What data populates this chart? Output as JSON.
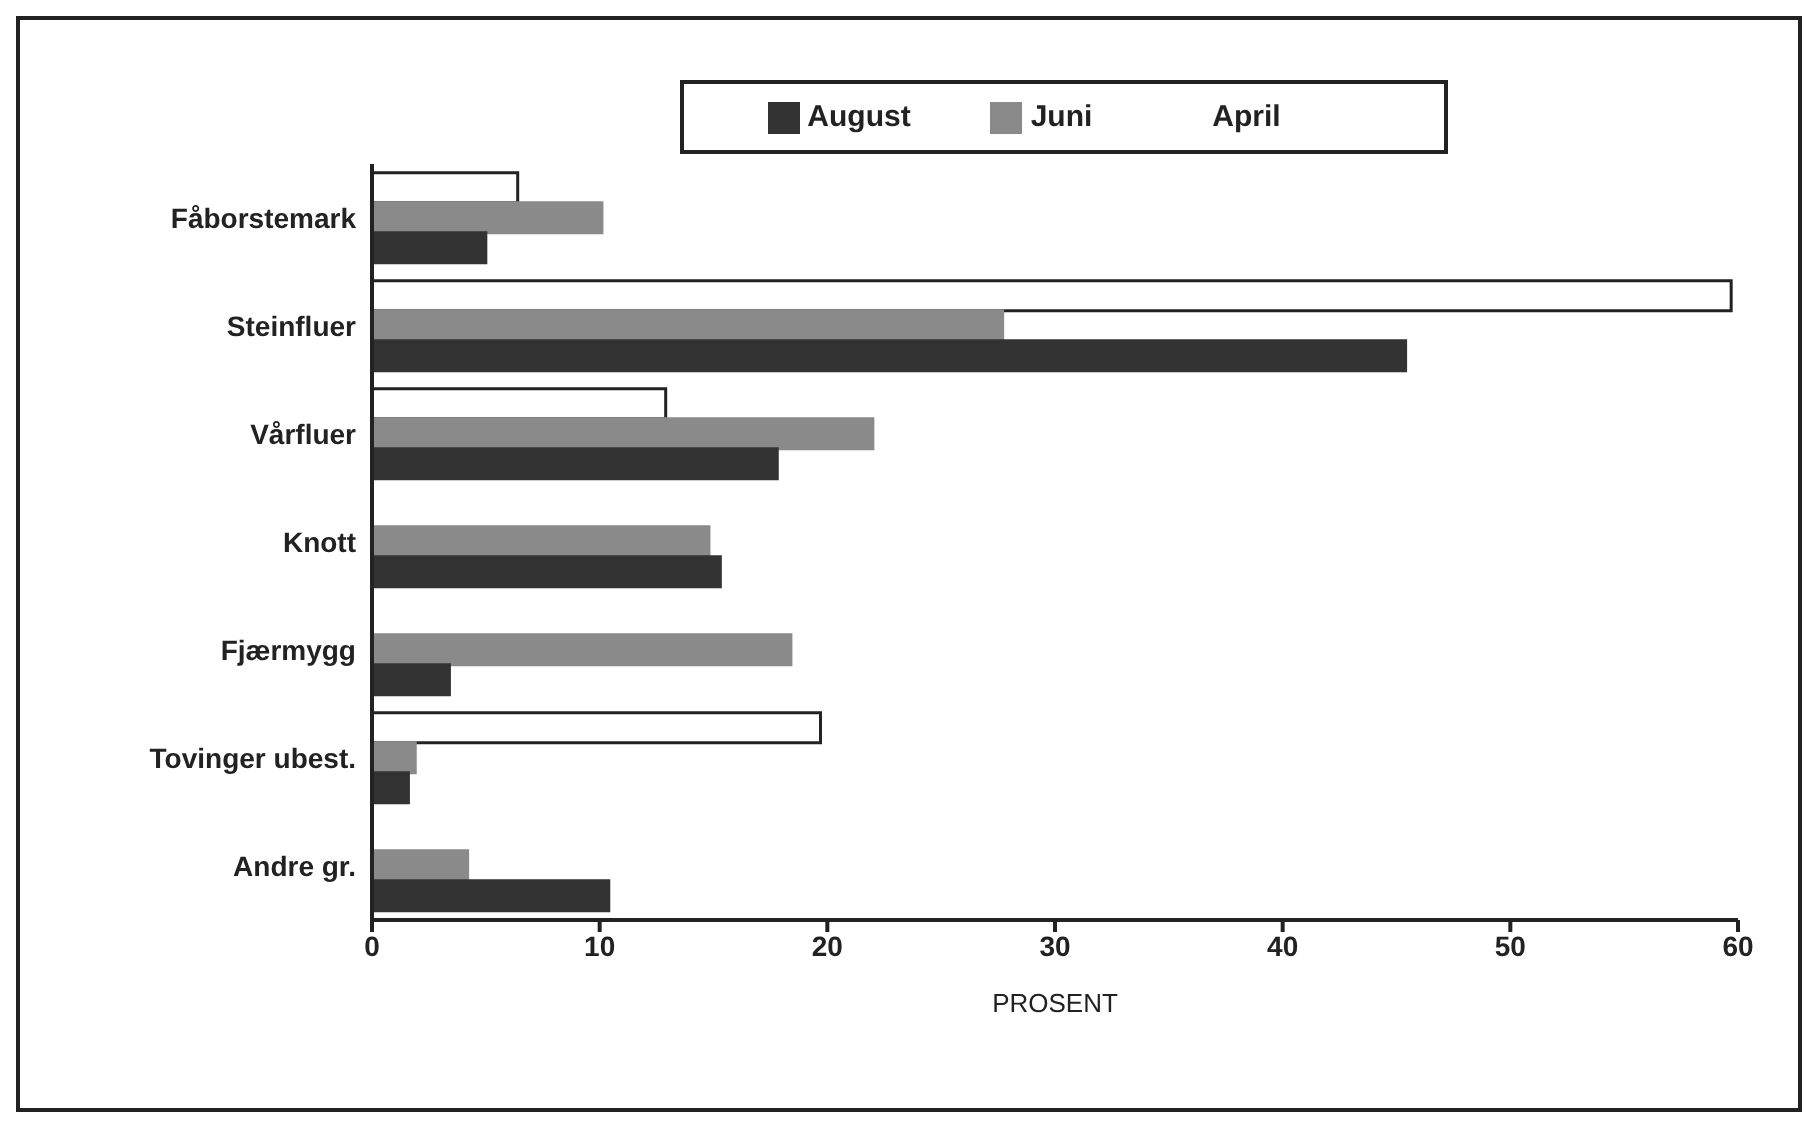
{
  "chart_data": {
    "type": "bar",
    "orientation": "horizontal",
    "xlabel": "PROSENT",
    "categories": [
      "Fåborstemark",
      "Steinfluer",
      "Vårfluer",
      "Knott",
      "Fjærmygg",
      "Tovinger ubest.",
      "Andre gr."
    ],
    "series": [
      {
        "name": "August",
        "color": "#333333",
        "values": [
          5.0,
          45.4,
          17.8,
          15.3,
          3.4,
          1.6,
          10.4
        ]
      },
      {
        "name": "Juni",
        "color": "#8a8a8a",
        "values": [
          10.1,
          27.7,
          22.0,
          14.8,
          18.4,
          1.9,
          4.2
        ]
      },
      {
        "name": "April",
        "color": "#ffffff",
        "values": [
          6.4,
          59.7,
          12.9,
          null,
          null,
          19.7,
          null
        ]
      }
    ],
    "xlim": [
      0,
      60
    ],
    "xticks": [
      0,
      10,
      20,
      30,
      40,
      50,
      60
    ],
    "grid": false,
    "legend": "top"
  }
}
